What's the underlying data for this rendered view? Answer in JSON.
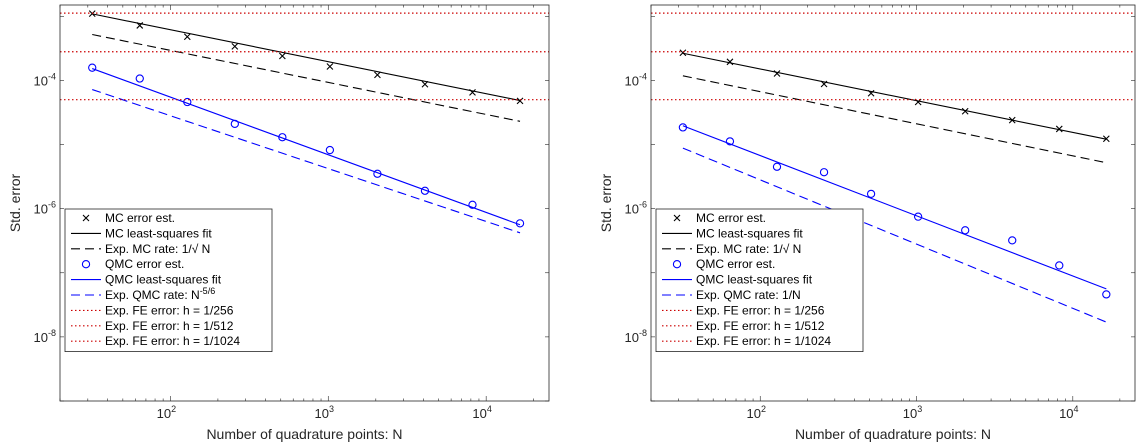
{
  "chart_data": [
    {
      "type": "line",
      "xscale": "log",
      "yscale": "log",
      "xlim": [
        20,
        25000
      ],
      "ylim": [
        1e-09,
        0.0015
      ],
      "xlabel": "Number of quadrature points: N",
      "ylabel": "Std. error",
      "xticks": [
        {
          "value": 100,
          "base": "10",
          "exp": "2"
        },
        {
          "value": 1000,
          "base": "10",
          "exp": "3"
        },
        {
          "value": 10000,
          "base": "10",
          "exp": "4"
        }
      ],
      "yticks": [
        {
          "value": 1e-08,
          "base": "10",
          "exp": "-8"
        },
        {
          "value": 1e-06,
          "base": "10",
          "exp": "-6"
        },
        {
          "value": 0.0001,
          "base": "10",
          "exp": "-4"
        }
      ],
      "grid": false,
      "legend_position": "bottom-left",
      "series": [
        {
          "name": "MC error est.",
          "style": "marker-x",
          "color": "#000000",
          "x": [
            32,
            64,
            128,
            256,
            512,
            1024,
            2048,
            4096,
            8192,
            16384
          ],
          "y": [
            0.0011,
            0.00072,
            0.00048,
            0.00034,
            0.00024,
            0.000165,
            0.000122,
            8.7e-05,
            6.5e-05,
            4.8e-05
          ]
        },
        {
          "name": "MC least-squares fit",
          "style": "solid",
          "color": "#000000",
          "x": [
            32,
            16384
          ],
          "y": [
            0.00109,
            4.85e-05
          ]
        },
        {
          "name": "Exp. MC rate: 1/√ N",
          "style": "dashed",
          "color": "#000000",
          "x": [
            32,
            16384
          ],
          "y": [
            0.00052,
            2.3e-05
          ]
        },
        {
          "name": "QMC error est.",
          "style": "marker-o",
          "color": "#0000ff",
          "x": [
            32,
            64,
            128,
            256,
            512,
            1024,
            2048,
            4096,
            8192,
            16384
          ],
          "y": [
            0.000158,
            0.000107,
            4.6e-05,
            2.1e-05,
            1.3e-05,
            8.2e-06,
            3.5e-06,
            1.9e-06,
            1.15e-06,
            5.9e-07
          ]
        },
        {
          "name": "QMC least-squares fit",
          "style": "solid",
          "color": "#0000ff",
          "x": [
            32,
            16384
          ],
          "y": [
            0.000153,
            5.6e-07
          ]
        },
        {
          "name": "Exp. QMC rate: N",
          "name_sup": "-5/6",
          "style": "dashed",
          "color": "#0000ff",
          "x": [
            32,
            16384
          ],
          "y": [
            7.2e-05,
            4.2e-07
          ]
        },
        {
          "name": "Exp. FE error: h = 1/256",
          "style": "dotted",
          "color": "#cc0000",
          "hline": 0.00112
        },
        {
          "name": "Exp. FE error: h = 1/512",
          "style": "dotted",
          "color": "#cc0000",
          "hline": 0.00028
        },
        {
          "name": "Exp. FE error: h = 1/1024",
          "style": "dotted",
          "color": "#cc0000",
          "hline": 5e-05
        }
      ]
    },
    {
      "type": "line",
      "xscale": "log",
      "yscale": "log",
      "xlim": [
        20,
        25000
      ],
      "ylim": [
        1e-09,
        0.0015
      ],
      "xlabel": "Number of quadrature points: N",
      "ylabel": "Std. error",
      "xticks": [
        {
          "value": 100,
          "base": "10",
          "exp": "2"
        },
        {
          "value": 1000,
          "base": "10",
          "exp": "3"
        },
        {
          "value": 10000,
          "base": "10",
          "exp": "4"
        }
      ],
      "yticks": [
        {
          "value": 1e-08,
          "base": "10",
          "exp": "-8"
        },
        {
          "value": 1e-06,
          "base": "10",
          "exp": "-6"
        },
        {
          "value": 0.0001,
          "base": "10",
          "exp": "-4"
        }
      ],
      "grid": false,
      "legend_position": "bottom-left",
      "series": [
        {
          "name": "MC error est.",
          "style": "marker-x",
          "color": "#000000",
          "x": [
            32,
            64,
            128,
            256,
            512,
            1024,
            2048,
            4096,
            8192,
            16384
          ],
          "y": [
            0.00027,
            0.000195,
            0.000128,
            8.8e-05,
            6.3e-05,
            4.6e-05,
            3.3e-05,
            2.4e-05,
            1.75e-05,
            1.23e-05
          ]
        },
        {
          "name": "MC least-squares fit",
          "style": "solid",
          "color": "#000000",
          "x": [
            32,
            16384
          ],
          "y": [
            0.000265,
            1.21e-05
          ]
        },
        {
          "name": "Exp. MC rate: 1/√ N",
          "style": "dashed",
          "color": "#000000",
          "x": [
            32,
            16384
          ],
          "y": [
            0.000118,
            5.2e-06
          ]
        },
        {
          "name": "QMC error est.",
          "style": "marker-o",
          "color": "#0000ff",
          "x": [
            32,
            64,
            128,
            256,
            512,
            1024,
            2048,
            4096,
            8192,
            16384
          ],
          "y": [
            1.85e-05,
            1.12e-05,
            4.5e-06,
            3.7e-06,
            1.7e-06,
            7.5e-07,
            4.6e-07,
            3.2e-07,
            1.3e-07,
            4.6e-08
          ]
        },
        {
          "name": "QMC least-squares fit",
          "style": "solid",
          "color": "#0000ff",
          "x": [
            32,
            16384
          ],
          "y": [
            1.96e-05,
            5.6e-08
          ]
        },
        {
          "name": "Exp. QMC rate: 1/N",
          "style": "dashed",
          "color": "#0000ff",
          "x": [
            32,
            16384
          ],
          "y": [
            8.8e-06,
            1.7e-08
          ]
        },
        {
          "name": "Exp. FE error: h = 1/256",
          "style": "dotted",
          "color": "#cc0000",
          "hline": 0.00112
        },
        {
          "name": "Exp. FE error: h = 1/512",
          "style": "dotted",
          "color": "#cc0000",
          "hline": 0.00028
        },
        {
          "name": "Exp. FE error: h = 1/1024",
          "style": "dotted",
          "color": "#cc0000",
          "hline": 5e-05
        }
      ]
    }
  ]
}
